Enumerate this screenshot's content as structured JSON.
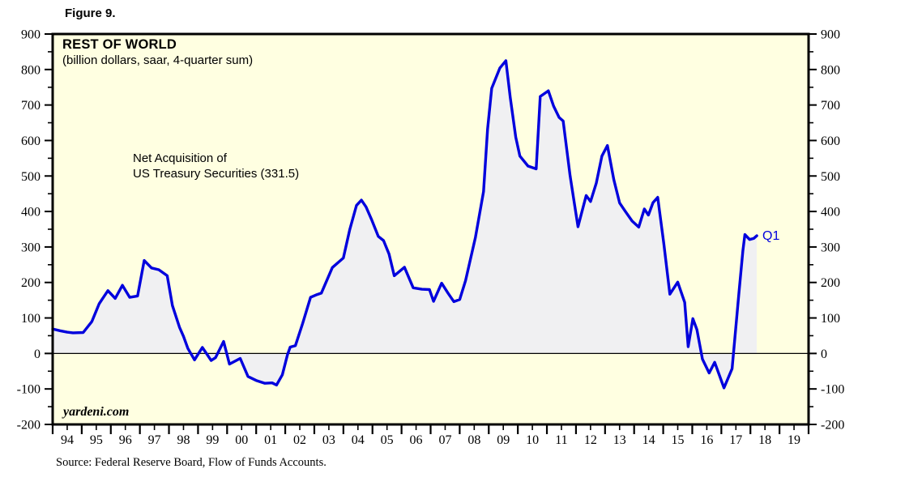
{
  "figure_label": "Figure 9.",
  "panel": {
    "title": "REST OF WORLD",
    "subtitle": "(billion dollars, saar, 4-quarter sum)"
  },
  "annotation": {
    "line1": "Net Acquisition of",
    "line2": "US Treasury Securities (331.5)"
  },
  "watermark": "yardeni.com",
  "end_label": "Q1",
  "source": "Source: Federal Reserve Board, Flow of Funds Accounts.",
  "colors": {
    "plot_bg": "#ffffe1",
    "line": "#0000dd",
    "fill": "#f0f0f2",
    "frame": "#000000",
    "end_label_color": "#0000dd"
  },
  "chart_data": {
    "type": "area",
    "title": "REST OF WORLD",
    "subtitle": "(billion dollars, saar, 4-quarter sum)",
    "series_name": "Net Acquisition of US Treasury Securities",
    "latest_period_label": "Q1",
    "latest_value": 331.5,
    "baseline": 0,
    "ylim": [
      -200,
      900
    ],
    "ytick_step": 100,
    "ytick_minor_step": 50,
    "x_start": 1994,
    "x_tick_labels": [
      "94",
      "95",
      "96",
      "97",
      "98",
      "99",
      "00",
      "01",
      "02",
      "03",
      "04",
      "05",
      "06",
      "07",
      "08",
      "09",
      "10",
      "11",
      "12",
      "13",
      "14",
      "15",
      "16",
      "17",
      "18",
      "19"
    ],
    "points": [
      [
        1994.0,
        69
      ],
      [
        1994.25,
        64
      ],
      [
        1994.5,
        60
      ],
      [
        1994.7,
        58
      ],
      [
        1995.05,
        59
      ],
      [
        1995.35,
        90
      ],
      [
        1995.6,
        140
      ],
      [
        1995.9,
        177
      ],
      [
        1996.15,
        155
      ],
      [
        1996.4,
        192
      ],
      [
        1996.65,
        158
      ],
      [
        1996.92,
        162
      ],
      [
        1997.15,
        262
      ],
      [
        1997.4,
        241
      ],
      [
        1997.65,
        236
      ],
      [
        1997.94,
        219
      ],
      [
        1998.12,
        135
      ],
      [
        1998.36,
        74
      ],
      [
        1998.5,
        48
      ],
      [
        1998.65,
        14
      ],
      [
        1998.88,
        -18
      ],
      [
        1999.15,
        17
      ],
      [
        1999.45,
        -20
      ],
      [
        1999.6,
        -12
      ],
      [
        1999.88,
        34
      ],
      [
        2000.08,
        -30
      ],
      [
        2000.45,
        -14
      ],
      [
        2000.72,
        -65
      ],
      [
        2001.0,
        -76
      ],
      [
        2001.3,
        -84
      ],
      [
        2001.55,
        -83
      ],
      [
        2001.7,
        -89
      ],
      [
        2001.9,
        -60
      ],
      [
        2002.08,
        -3
      ],
      [
        2002.17,
        18
      ],
      [
        2002.35,
        22
      ],
      [
        2002.6,
        85
      ],
      [
        2002.87,
        158
      ],
      [
        2003.1,
        166
      ],
      [
        2003.24,
        170
      ],
      [
        2003.62,
        242
      ],
      [
        2004.0,
        269
      ],
      [
        2004.22,
        349
      ],
      [
        2004.45,
        417
      ],
      [
        2004.62,
        432
      ],
      [
        2004.78,
        413
      ],
      [
        2004.96,
        379
      ],
      [
        2005.2,
        330
      ],
      [
        2005.38,
        318
      ],
      [
        2005.57,
        280
      ],
      [
        2005.75,
        219
      ],
      [
        2006.1,
        243
      ],
      [
        2006.4,
        185
      ],
      [
        2006.7,
        181
      ],
      [
        2006.96,
        180
      ],
      [
        2007.1,
        147
      ],
      [
        2007.38,
        198
      ],
      [
        2007.6,
        170
      ],
      [
        2007.8,
        146
      ],
      [
        2008.0,
        152
      ],
      [
        2008.2,
        205
      ],
      [
        2008.54,
        327
      ],
      [
        2008.82,
        456
      ],
      [
        2008.96,
        632
      ],
      [
        2009.1,
        747
      ],
      [
        2009.38,
        804
      ],
      [
        2009.59,
        825
      ],
      [
        2009.74,
        721
      ],
      [
        2009.93,
        609
      ],
      [
        2010.07,
        556
      ],
      [
        2010.35,
        528
      ],
      [
        2010.63,
        520
      ],
      [
        2010.77,
        724
      ],
      [
        2011.05,
        740
      ],
      [
        2011.23,
        697
      ],
      [
        2011.42,
        665
      ],
      [
        2011.56,
        655
      ],
      [
        2011.8,
        500
      ],
      [
        2012.07,
        357
      ],
      [
        2012.35,
        445
      ],
      [
        2012.5,
        428
      ],
      [
        2012.7,
        480
      ],
      [
        2012.89,
        556
      ],
      [
        2013.08,
        586
      ],
      [
        2013.3,
        490
      ],
      [
        2013.5,
        424
      ],
      [
        2013.7,
        400
      ],
      [
        2013.93,
        373
      ],
      [
        2014.16,
        356
      ],
      [
        2014.35,
        407
      ],
      [
        2014.49,
        390
      ],
      [
        2014.65,
        425
      ],
      [
        2014.81,
        440
      ],
      [
        2015.02,
        310
      ],
      [
        2015.23,
        167
      ],
      [
        2015.5,
        201
      ],
      [
        2015.74,
        144
      ],
      [
        2015.86,
        19
      ],
      [
        2016.02,
        98
      ],
      [
        2016.16,
        67
      ],
      [
        2016.35,
        -16
      ],
      [
        2016.58,
        -55
      ],
      [
        2016.77,
        -25
      ],
      [
        2017.09,
        -97
      ],
      [
        2017.37,
        -43
      ],
      [
        2017.6,
        167
      ],
      [
        2017.74,
        289
      ],
      [
        2017.81,
        335
      ],
      [
        2017.97,
        321
      ],
      [
        2018.11,
        324
      ],
      [
        2018.22,
        331.5
      ]
    ]
  }
}
